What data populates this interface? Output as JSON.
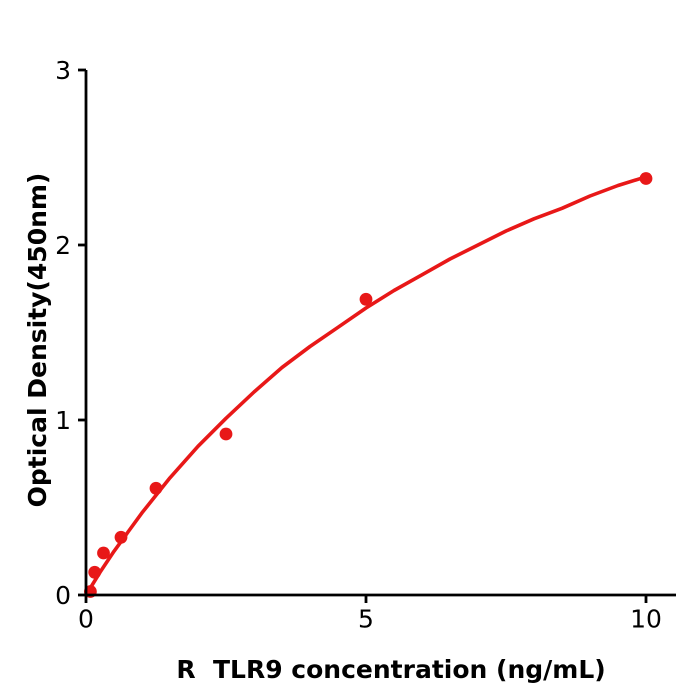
{
  "figure": {
    "background_color": "#ffffff",
    "axis_color": "#000000",
    "accent_color": "#e81818"
  },
  "chart_data": {
    "type": "scatter",
    "title": "",
    "xlabel": "R  TLR9 concentration (ng/mL)",
    "ylabel": "Optical Density(450nm)",
    "xlim": [
      0,
      10.55
    ],
    "ylim": [
      0,
      3
    ],
    "x_ticks": [
      0,
      5,
      10
    ],
    "y_ticks": [
      0,
      1,
      2,
      3
    ],
    "grid": false,
    "legend": "none",
    "series": [
      {
        "name": "standard-data-points",
        "style": "scatter",
        "color": "#e81818",
        "x": [
          0.078,
          0.156,
          0.312,
          0.625,
          1.25,
          2.5,
          5,
          10
        ],
        "od": [
          0.02,
          0.13,
          0.24,
          0.33,
          0.61,
          0.92,
          1.69,
          2.38
        ]
      },
      {
        "name": "fitted-curve",
        "style": "line",
        "color": "#e81818",
        "x": [
          0,
          0.25,
          0.5,
          0.75,
          1,
          1.5,
          2,
          2.5,
          3,
          3.5,
          4,
          4.5,
          5,
          5.5,
          6,
          6.5,
          7,
          7.5,
          8,
          8.5,
          9,
          9.5,
          10
        ],
        "od": [
          0,
          0.13,
          0.25,
          0.36,
          0.47,
          0.67,
          0.85,
          1.01,
          1.16,
          1.3,
          1.42,
          1.53,
          1.64,
          1.74,
          1.83,
          1.92,
          2.0,
          2.08,
          2.15,
          2.21,
          2.28,
          2.34,
          2.39
        ]
      }
    ]
  }
}
